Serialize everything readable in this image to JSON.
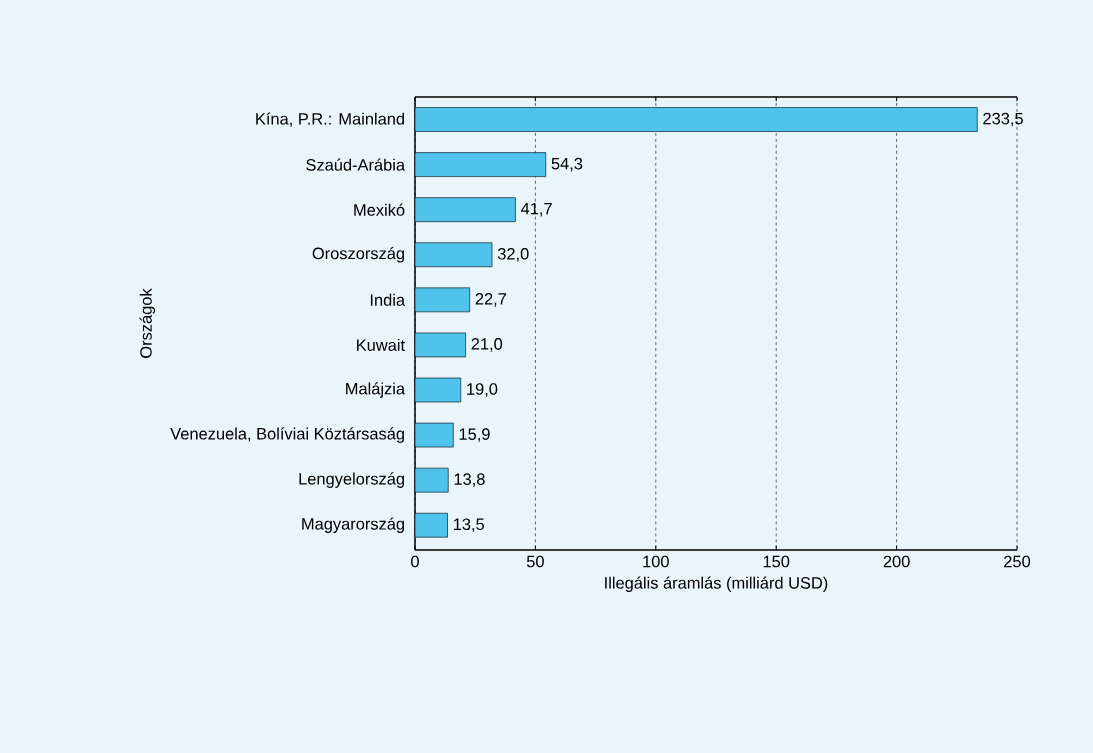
{
  "chart_data": {
    "type": "bar",
    "orientation": "horizontal",
    "categories": [
      "Kína, P.R.: Mainland",
      "Szaúd-Arábia",
      "Mexikó",
      "Oroszország",
      "India",
      "Kuwait",
      "Malájzia",
      "Venezuela, Bolíviai Köztársaság",
      "Lengyelország",
      "Magyarország"
    ],
    "values": [
      233.5,
      54.3,
      41.7,
      32.0,
      22.7,
      21.0,
      19.0,
      15.9,
      13.8,
      13.5
    ],
    "value_labels": [
      "233,5",
      "54,3",
      "41,7",
      "32,0",
      "22,7",
      "21,0",
      "19,0",
      "15,9",
      "13,8",
      "13,5"
    ],
    "color": "#4fc3ec",
    "xlabel": "Illegális áramlás (milliárd USD)",
    "ylabel": "Országok",
    "xlim": [
      0,
      250
    ],
    "xticks": [
      0,
      50,
      100,
      150,
      200,
      250
    ],
    "grid": "x"
  }
}
